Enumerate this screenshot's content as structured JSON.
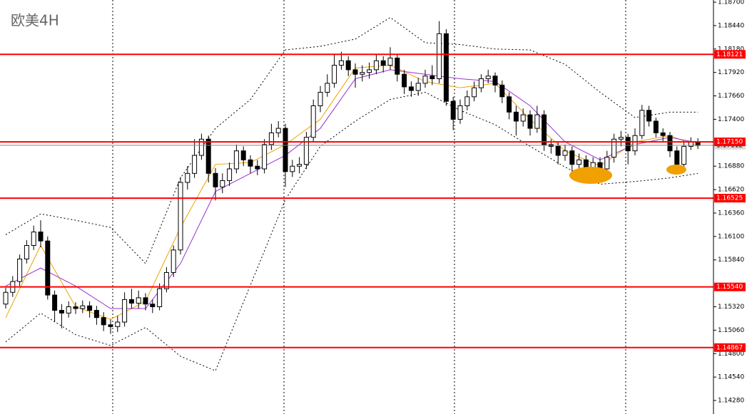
{
  "chart_data": {
    "type": "candlestick",
    "title": "欧美4H",
    "ylim": [
      1.1413,
      1.18724
    ],
    "yticks": [
      {
        "value": 1.187,
        "label": "1.18700"
      },
      {
        "value": 1.1844,
        "label": "1.18440"
      },
      {
        "value": 1.1818,
        "label": "1.18180"
      },
      {
        "value": 1.1792,
        "label": "1.17920"
      },
      {
        "value": 1.1766,
        "label": "1.17660"
      },
      {
        "value": 1.174,
        "label": "1.17400"
      },
      {
        "value": 1.1688,
        "label": "1.16880"
      },
      {
        "value": 1.1662,
        "label": "1.16620"
      },
      {
        "value": 1.1636,
        "label": "1.16360"
      },
      {
        "value": 1.161,
        "label": "1.16100"
      },
      {
        "value": 1.1584,
        "label": "1.15840"
      },
      {
        "value": 1.1532,
        "label": "1.15320"
      },
      {
        "value": 1.1506,
        "label": "1.15060"
      },
      {
        "value": 1.148,
        "label": "1.14800"
      },
      {
        "value": 1.1454,
        "label": "1.14540"
      },
      {
        "value": 1.1428,
        "label": "1.14280"
      }
    ],
    "levels": [
      1.18121,
      {
        "value": 1.1715,
        "label": "1.17150"
      },
      1.16525,
      {
        "value": 1.1554,
        "label": "1.15540"
      },
      1.14867
    ],
    "level_color": "#ff0000",
    "current_price": 1.17112,
    "up_color": "#ffffff",
    "down_color": "#000000",
    "open": [
      1.1535,
      1.1548,
      1.156,
      1.1585,
      1.16,
      1.1615,
      1.1605,
      1.1545,
      1.1528,
      1.1525,
      1.1532,
      1.153,
      1.1533,
      1.1528,
      1.152,
      1.1512,
      1.151,
      1.1515,
      1.154,
      1.1536,
      1.1542,
      1.1535,
      1.1532,
      1.1552,
      1.157,
      1.1595,
      1.167,
      1.168,
      1.17,
      1.1718,
      1.168,
      1.1665,
      1.1672,
      1.1685,
      1.1705,
      1.1695,
      1.1688,
      1.1685,
      1.1712,
      1.1725,
      1.173,
      1.1682,
      1.1688,
      1.169,
      1.172,
      1.1755,
      1.177,
      1.178,
      1.18,
      1.1805,
      1.1795,
      1.179,
      1.1792,
      1.1795,
      1.1805,
      1.18,
      1.1808,
      1.179,
      1.1776,
      1.1772,
      1.178,
      1.1788,
      1.1785,
      1.1835,
      1.176,
      1.174,
      1.1755,
      1.1765,
      1.1775,
      1.1785,
      1.1788,
      1.1778,
      1.1765,
      1.1748,
      1.1738,
      1.1745,
      1.173,
      1.1745,
      1.1712,
      1.171,
      1.17,
      1.1705,
      1.169,
      1.1695,
      1.1682,
      1.1692,
      1.1685,
      1.1698,
      1.1718,
      1.172,
      1.1705,
      1.1722,
      1.175,
      1.1738,
      1.1725,
      1.1722,
      1.1705,
      1.169,
      1.171,
      1.1715
    ],
    "high": [
      1.1553,
      1.1566,
      1.159,
      1.1606,
      1.1622,
      1.1628,
      1.161,
      1.155,
      1.1535,
      1.1538,
      1.1537,
      1.1539,
      1.1538,
      1.1533,
      1.1526,
      1.1518,
      1.1522,
      1.1548,
      1.1552,
      1.155,
      1.1547,
      1.154,
      1.1558,
      1.1576,
      1.16,
      1.1676,
      1.1688,
      1.1718,
      1.1724,
      1.1722,
      1.1686,
      1.168,
      1.1692,
      1.1712,
      1.171,
      1.17,
      1.1695,
      1.1718,
      1.1735,
      1.1738,
      1.1735,
      1.1695,
      1.1698,
      1.1726,
      1.1762,
      1.1777,
      1.179,
      1.1812,
      1.1815,
      1.181,
      1.1802,
      1.18,
      1.1803,
      1.1812,
      1.181,
      1.182,
      1.1812,
      1.1795,
      1.1782,
      1.1786,
      1.1795,
      1.18,
      1.1849,
      1.184,
      1.1765,
      1.1762,
      1.1772,
      1.1782,
      1.179,
      1.1795,
      1.1792,
      1.1783,
      1.177,
      1.1755,
      1.1752,
      1.175,
      1.1755,
      1.175,
      1.1718,
      1.1715,
      1.1712,
      1.171,
      1.1702,
      1.17,
      1.1698,
      1.1698,
      1.1705,
      1.1724,
      1.1727,
      1.1724,
      1.173,
      1.1756,
      1.1755,
      1.1742,
      1.173,
      1.1726,
      1.171,
      1.1716,
      1.172,
      1.1719
    ],
    "low": [
      1.153,
      1.1543,
      1.1555,
      1.158,
      1.1595,
      1.1598,
      1.154,
      1.1515,
      1.1508,
      1.152,
      1.1524,
      1.1525,
      1.152,
      1.1512,
      1.1505,
      1.1502,
      1.1504,
      1.151,
      1.153,
      1.153,
      1.1528,
      1.1525,
      1.1528,
      1.1548,
      1.1565,
      1.159,
      1.1662,
      1.1675,
      1.1695,
      1.167,
      1.165,
      1.1658,
      1.1666,
      1.168,
      1.1688,
      1.168,
      1.1678,
      1.168,
      1.1706,
      1.172,
      1.1665,
      1.1676,
      1.168,
      1.1685,
      1.1715,
      1.1748,
      1.1765,
      1.1775,
      1.1795,
      1.1788,
      1.1775,
      1.1782,
      1.1785,
      1.179,
      1.1792,
      1.1795,
      1.1782,
      1.1768,
      1.1765,
      1.1766,
      1.1775,
      1.1778,
      1.178,
      1.1755,
      1.1728,
      1.1735,
      1.175,
      1.176,
      1.177,
      1.178,
      1.177,
      1.1758,
      1.174,
      1.1722,
      1.1732,
      1.1722,
      1.1725,
      1.1705,
      1.1702,
      1.169,
      1.1694,
      1.168,
      1.1682,
      1.1672,
      1.1675,
      1.1676,
      1.168,
      1.1692,
      1.171,
      1.169,
      1.17,
      1.1718,
      1.1732,
      1.172,
      1.1715,
      1.1698,
      1.1685,
      1.1686,
      1.1706,
      1.1707
    ],
    "close": [
      1.1548,
      1.156,
      1.1585,
      1.16,
      1.1615,
      1.1605,
      1.1545,
      1.1528,
      1.1525,
      1.1532,
      1.153,
      1.1533,
      1.1528,
      1.152,
      1.1512,
      1.151,
      1.1515,
      1.154,
      1.1536,
      1.1542,
      1.1535,
      1.1532,
      1.1552,
      1.157,
      1.1595,
      1.167,
      1.168,
      1.17,
      1.1718,
      1.168,
      1.1665,
      1.1672,
      1.1685,
      1.1705,
      1.1695,
      1.1688,
      1.1685,
      1.1712,
      1.1725,
      1.173,
      1.1682,
      1.1688,
      1.169,
      1.172,
      1.1755,
      1.177,
      1.178,
      1.18,
      1.1805,
      1.1795,
      1.179,
      1.1792,
      1.1795,
      1.1805,
      1.18,
      1.1808,
      1.179,
      1.1776,
      1.1772,
      1.178,
      1.1788,
      1.1785,
      1.1835,
      1.176,
      1.174,
      1.1755,
      1.1765,
      1.1775,
      1.1785,
      1.1788,
      1.1778,
      1.1765,
      1.1748,
      1.1738,
      1.1745,
      1.173,
      1.1745,
      1.1712,
      1.171,
      1.17,
      1.1705,
      1.169,
      1.1695,
      1.1682,
      1.1692,
      1.1685,
      1.1698,
      1.1718,
      1.172,
      1.1705,
      1.1722,
      1.175,
      1.1738,
      1.1725,
      1.1722,
      1.1705,
      1.169,
      1.171,
      1.1715,
      1.1711
    ],
    "line_x": [
      0,
      5,
      10,
      15,
      20,
      25,
      30,
      35,
      40,
      45,
      50,
      55,
      60,
      65,
      70,
      75,
      80,
      85,
      90,
      95,
      99
    ],
    "lines": [
      {
        "color": "#f0a000",
        "dashed": false,
        "values": [
          1.152,
          1.16,
          1.1532,
          1.1518,
          1.1538,
          1.162,
          1.169,
          1.1692,
          1.1712,
          1.174,
          1.1797,
          1.18,
          1.1782,
          1.1775,
          1.178,
          1.174,
          1.1705,
          1.1688,
          1.1715,
          1.1722,
          1.171
        ]
      },
      {
        "color": "#9933cc",
        "dashed": false,
        "values": [
          1.1555,
          1.1575,
          1.1555,
          1.153,
          1.153,
          1.158,
          1.166,
          1.168,
          1.17,
          1.173,
          1.1785,
          1.1795,
          1.179,
          1.1785,
          1.1782,
          1.1755,
          1.1715,
          1.1695,
          1.1712,
          1.172,
          1.1714
        ]
      },
      {
        "color": "#000000",
        "dashed": true,
        "values": [
          1.1612,
          1.1635,
          1.1628,
          1.162,
          1.158,
          1.1675,
          1.173,
          1.1762,
          1.1817,
          1.1821,
          1.1829,
          1.1853,
          1.1825,
          1.1823,
          1.1818,
          1.1817,
          1.1801,
          1.177,
          1.1742,
          1.1748,
          1.1748
        ]
      },
      {
        "color": "#000000",
        "dashed": true,
        "values": [
          1.1493,
          1.1525,
          1.1501,
          1.1489,
          1.1509,
          1.1477,
          1.1461,
          1.1556,
          1.1651,
          1.171,
          1.1738,
          1.1762,
          1.177,
          1.175,
          1.1734,
          1.171,
          1.1687,
          1.1668,
          1.1671,
          1.1675,
          1.168
        ]
      }
    ]
  }
}
